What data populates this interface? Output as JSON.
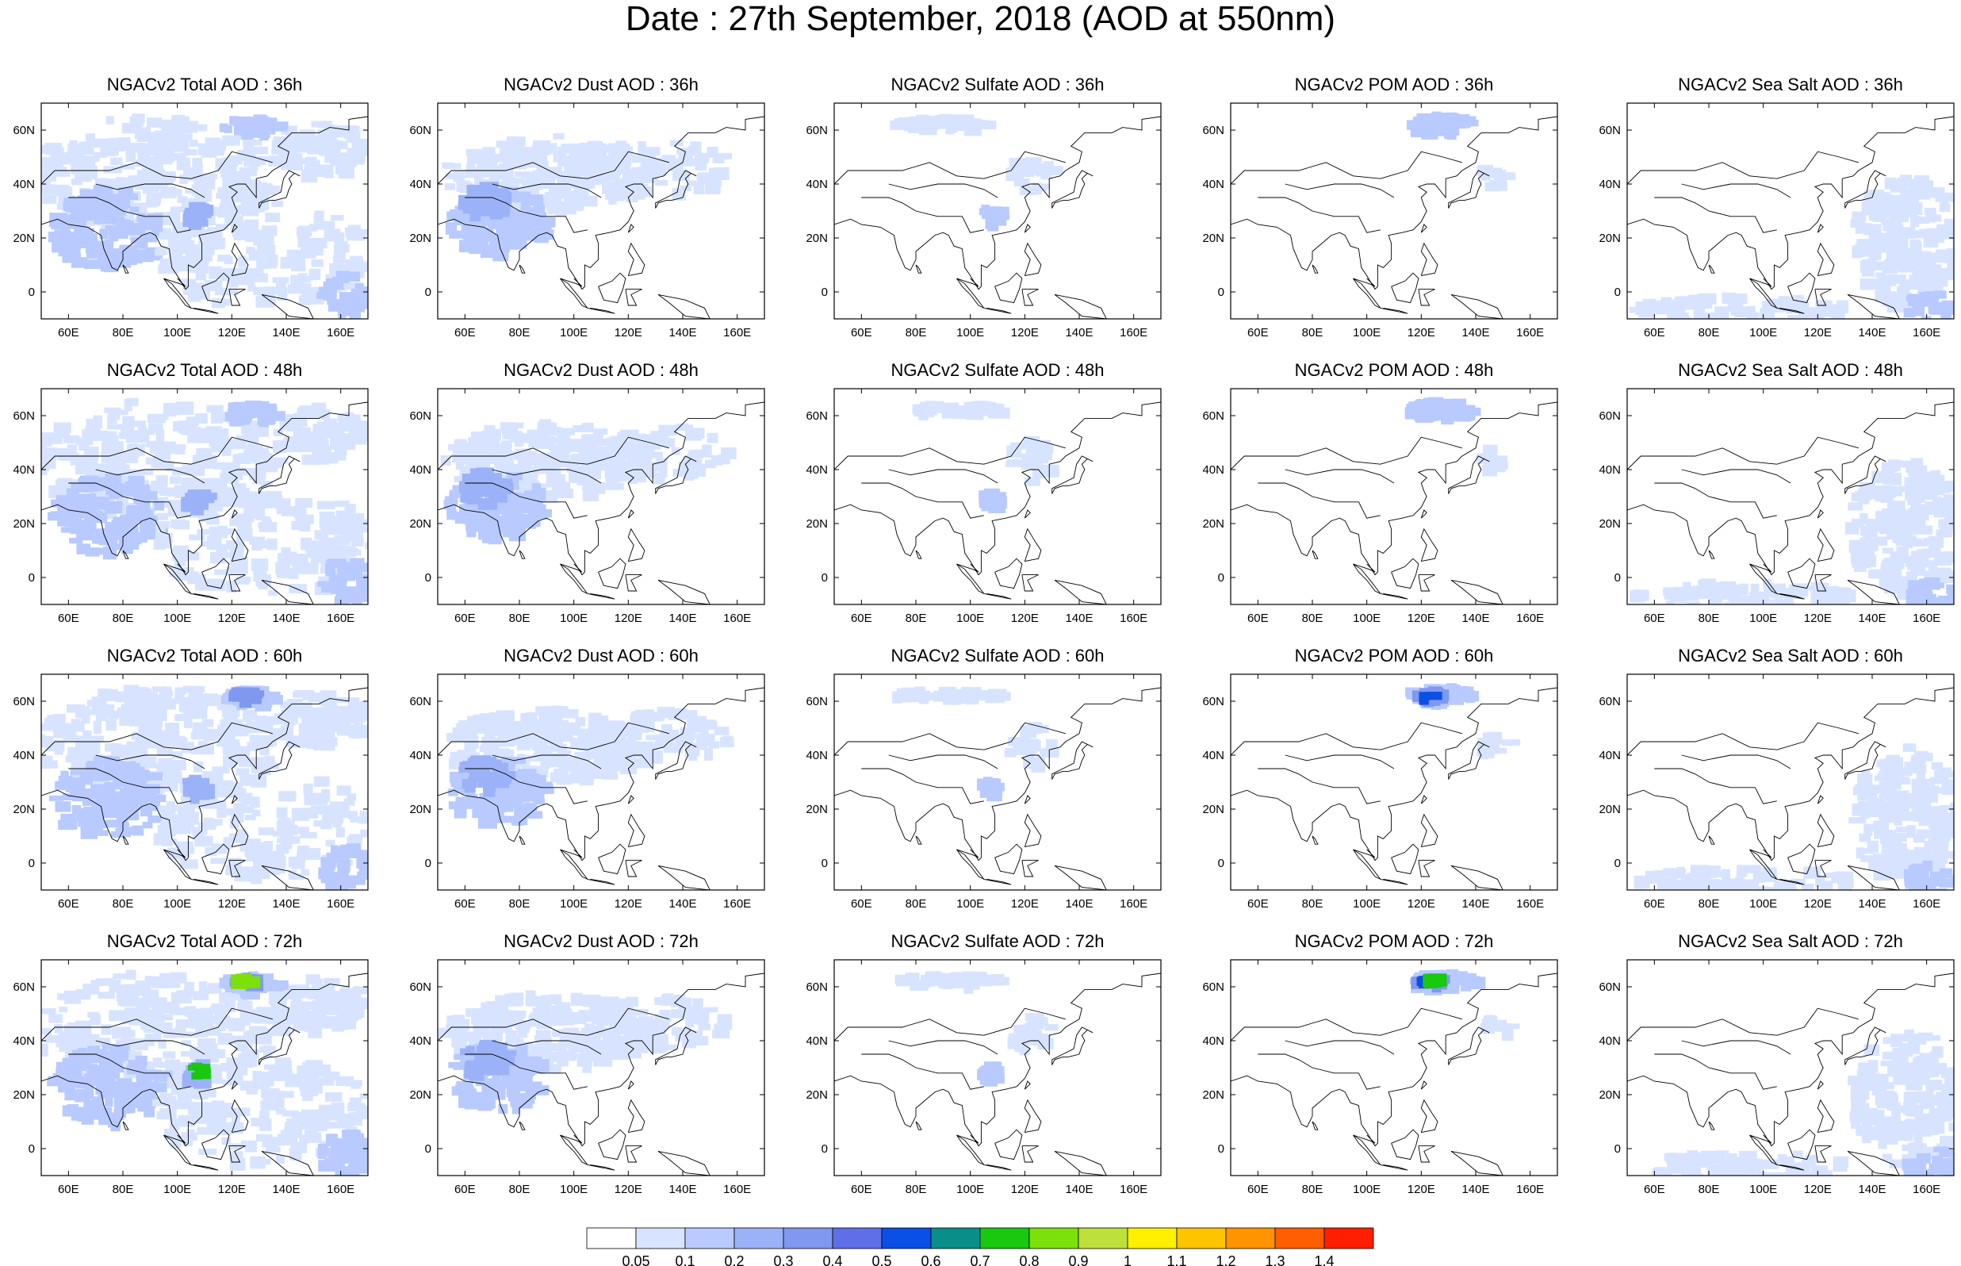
{
  "title": "Date : 27th September, 2018 (AOD at 550nm)",
  "chart_data": [
    {
      "type": "heatmap",
      "title": "NGACv2 Total AOD : 36h",
      "species": "total",
      "hour": "36h"
    },
    {
      "type": "heatmap",
      "title": "NGACv2 Dust AOD : 36h",
      "species": "dust",
      "hour": "36h"
    },
    {
      "type": "heatmap",
      "title": "NGACv2 Sulfate AOD : 36h",
      "species": "sulfate",
      "hour": "36h"
    },
    {
      "type": "heatmap",
      "title": "NGACv2 POM AOD : 36h",
      "species": "pom",
      "hour": "36h"
    },
    {
      "type": "heatmap",
      "title": "NGACv2 Sea Salt AOD : 36h",
      "species": "seasalt",
      "hour": "36h"
    },
    {
      "type": "heatmap",
      "title": "NGACv2 Total AOD : 48h",
      "species": "total",
      "hour": "48h"
    },
    {
      "type": "heatmap",
      "title": "NGACv2 Dust AOD : 48h",
      "species": "dust",
      "hour": "48h"
    },
    {
      "type": "heatmap",
      "title": "NGACv2 Sulfate AOD : 48h",
      "species": "sulfate",
      "hour": "48h"
    },
    {
      "type": "heatmap",
      "title": "NGACv2 POM AOD : 48h",
      "species": "pom",
      "hour": "48h"
    },
    {
      "type": "heatmap",
      "title": "NGACv2 Sea Salt AOD : 48h",
      "species": "seasalt",
      "hour": "48h"
    },
    {
      "type": "heatmap",
      "title": "NGACv2 Total AOD : 60h",
      "species": "total",
      "hour": "60h"
    },
    {
      "type": "heatmap",
      "title": "NGACv2 Dust AOD : 60h",
      "species": "dust",
      "hour": "60h"
    },
    {
      "type": "heatmap",
      "title": "NGACv2 Sulfate AOD : 60h",
      "species": "sulfate",
      "hour": "60h"
    },
    {
      "type": "heatmap",
      "title": "NGACv2 POM AOD : 60h",
      "species": "pom",
      "hour": "60h"
    },
    {
      "type": "heatmap",
      "title": "NGACv2 Sea Salt AOD : 60h",
      "species": "seasalt",
      "hour": "60h"
    },
    {
      "type": "heatmap",
      "title": "NGACv2 Total AOD : 72h",
      "species": "total",
      "hour": "72h"
    },
    {
      "type": "heatmap",
      "title": "NGACv2 Dust AOD : 72h",
      "species": "dust",
      "hour": "72h"
    },
    {
      "type": "heatmap",
      "title": "NGACv2 Sulfate AOD : 72h",
      "species": "sulfate",
      "hour": "72h"
    },
    {
      "type": "heatmap",
      "title": "NGACv2 POM AOD : 72h",
      "species": "pom",
      "hour": "72h"
    },
    {
      "type": "heatmap",
      "title": "NGACv2 Sea Salt  AOD : 72h",
      "species": "seasalt",
      "hour": "72h"
    }
  ],
  "axes": {
    "x_range": [
      50,
      170
    ],
    "y_range": [
      -10,
      70
    ],
    "x_ticks": [
      60,
      80,
      100,
      120,
      140,
      160
    ],
    "x_tick_labels": [
      "60E",
      "80E",
      "100E",
      "120E",
      "140E",
      "160E"
    ],
    "y_ticks": [
      0,
      20,
      40,
      60
    ],
    "y_tick_labels": [
      "0",
      "20N",
      "40N",
      "60N"
    ]
  },
  "colorbar": {
    "labels": [
      "0.05",
      "0.1",
      "0.2",
      "0.3",
      "0.4",
      "0.5",
      "0.6",
      "0.7",
      "0.8",
      "0.9",
      "1",
      "1.1",
      "1.2",
      "1.3",
      "1.4"
    ],
    "colors": [
      "#ffffff",
      "#d8e4ff",
      "#b8caff",
      "#9cb2f8",
      "#8098f0",
      "#5f6fe8",
      "#0a4fe6",
      "#0a8e8a",
      "#19c80f",
      "#7ee00a",
      "#bde03a",
      "#fff000",
      "#ffc400",
      "#ff9300",
      "#ff5f00",
      "#ff1e00"
    ]
  }
}
